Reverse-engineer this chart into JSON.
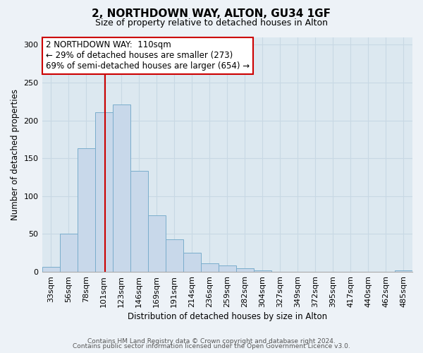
{
  "title": "2, NORTHDOWN WAY, ALTON, GU34 1GF",
  "subtitle": "Size of property relative to detached houses in Alton",
  "xlabel": "Distribution of detached houses by size in Alton",
  "ylabel": "Number of detached properties",
  "bar_labels": [
    "33sqm",
    "56sqm",
    "78sqm",
    "101sqm",
    "123sqm",
    "146sqm",
    "169sqm",
    "191sqm",
    "214sqm",
    "236sqm",
    "259sqm",
    "282sqm",
    "304sqm",
    "327sqm",
    "349sqm",
    "372sqm",
    "395sqm",
    "417sqm",
    "440sqm",
    "462sqm",
    "485sqm"
  ],
  "bar_values": [
    7,
    50,
    163,
    211,
    221,
    133,
    75,
    43,
    25,
    11,
    8,
    5,
    2,
    0,
    0,
    0,
    0,
    0,
    0,
    0,
    2
  ],
  "bar_color": "#c8d8ea",
  "bar_edgecolor": "#7aadcc",
  "vline_color": "#cc0000",
  "vline_pos": 3.07,
  "annotation_title": "2 NORTHDOWN WAY:  110sqm",
  "annotation_line1": "← 29% of detached houses are smaller (273)",
  "annotation_line2": "69% of semi-detached houses are larger (654) →",
  "annotation_box_edgecolor": "#cc0000",
  "annotation_box_facecolor": "#ffffff",
  "ylim": [
    0,
    310
  ],
  "yticks": [
    0,
    50,
    100,
    150,
    200,
    250,
    300
  ],
  "footer1": "Contains HM Land Registry data © Crown copyright and database right 2024.",
  "footer2": "Contains public sector information licensed under the Open Government Licence v3.0.",
  "bg_color": "#edf2f7",
  "plot_bg_color": "#dce8f0",
  "grid_color": "#c8d8e4",
  "title_fontsize": 11,
  "subtitle_fontsize": 9,
  "annotation_fontsize": 8.5,
  "axis_fontsize": 8.5,
  "tick_fontsize": 8,
  "footer_fontsize": 6.5
}
